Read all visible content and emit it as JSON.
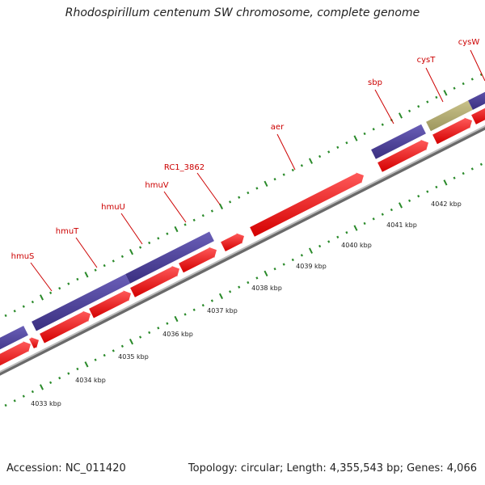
{
  "title": "Rhodospirillum centenum SW chromosome, complete genome",
  "footer": {
    "accession": "Accession: NC_011420",
    "stats": "Topology: circular; Length: 4,355,543 bp; Genes: 4,066"
  },
  "colors": {
    "gene": "#ff0000",
    "cds": "#4b3f94",
    "rna": "#b5ae72",
    "label": "#cc0000",
    "axis": "#8a8a8a",
    "tick": "#2a8a2a"
  },
  "gene_labels": [
    "hmuS",
    "hmuT",
    "hmuU",
    "hmuV",
    "RC1_3862",
    "aer",
    "sbp",
    "cysT",
    "cysW"
  ],
  "scale_labels": [
    "4033 kbp",
    "4034 kbp",
    "4035 kbp",
    "4036 kbp",
    "4037 kbp",
    "4038 kbp",
    "4039 kbp",
    "4040 kbp",
    "4041 kbp",
    "4042 kbp"
  ]
}
